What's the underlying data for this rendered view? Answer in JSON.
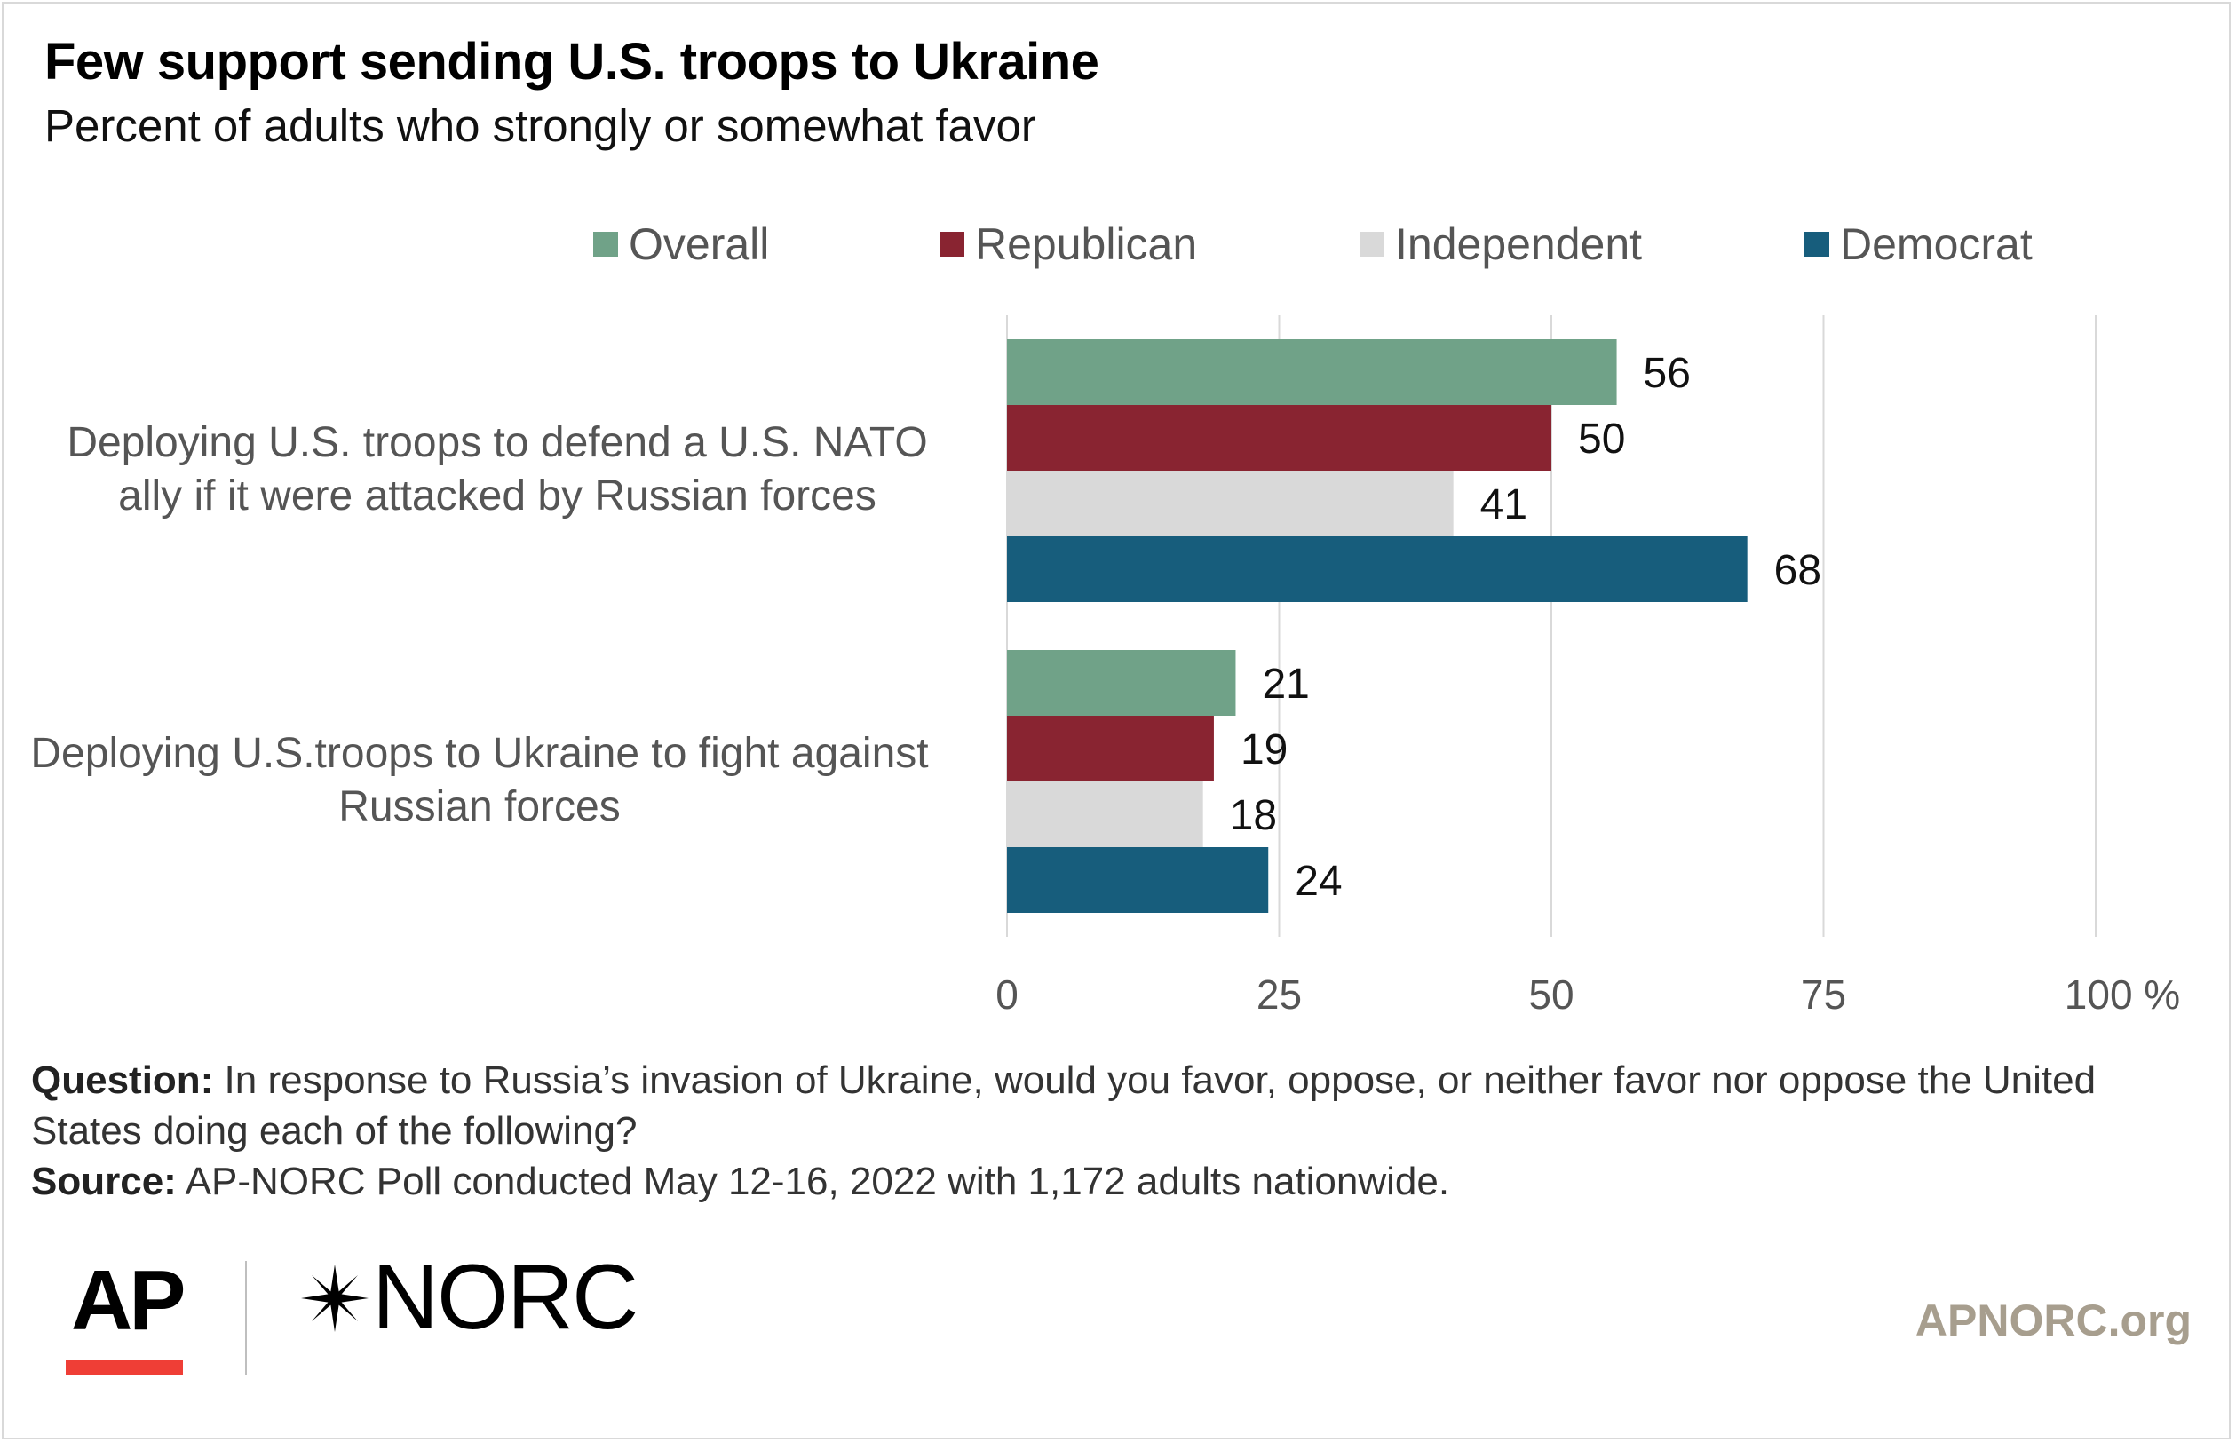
{
  "chart_data": {
    "type": "bar",
    "orientation": "horizontal",
    "title": "Few support sending U.S. troops to Ukraine",
    "subtitle": "Percent of adults who strongly or somewhat favor",
    "categories": [
      "Deploying U.S. troops to defend a U.S. NATO ally if it were attacked by Russian forces",
      "Deploying U.S.troops to Ukraine to fight against Russian forces"
    ],
    "category_lines": [
      [
        "Deploying U.S. troops to defend a U.S. NATO",
        "ally if it were attacked by Russian forces"
      ],
      [
        "Deploying U.S.troops to Ukraine to fight against",
        "Russian forces"
      ]
    ],
    "series": [
      {
        "name": "Overall",
        "color": "#70a288",
        "values": [
          56,
          21
        ]
      },
      {
        "name": "Republican",
        "color": "#892431",
        "values": [
          50,
          19
        ]
      },
      {
        "name": "Independent",
        "color": "#d9d9d9",
        "values": [
          41,
          18
        ]
      },
      {
        "name": "Democrat",
        "color": "#175d7c",
        "values": [
          68,
          24
        ]
      }
    ],
    "xlim": [
      0,
      100
    ],
    "xticks": [
      "0",
      "25",
      "50",
      "75",
      "100 %"
    ],
    "xtick_values": [
      0,
      25,
      50,
      75,
      100
    ],
    "grid": true,
    "legend_position": "top"
  },
  "footer": {
    "question_label": "Question:",
    "question_text": " In response to Russia’s invasion of Ukraine, would you favor, oppose, or neither favor nor oppose the United States doing each of the following?",
    "source_label": "Source:",
    "source_text": " AP-NORC Poll conducted May 12-16, 2022 with 1,172 adults nationwide."
  },
  "logos": {
    "ap": "AP",
    "norc": "NORC",
    "site": "APNORC.org"
  }
}
